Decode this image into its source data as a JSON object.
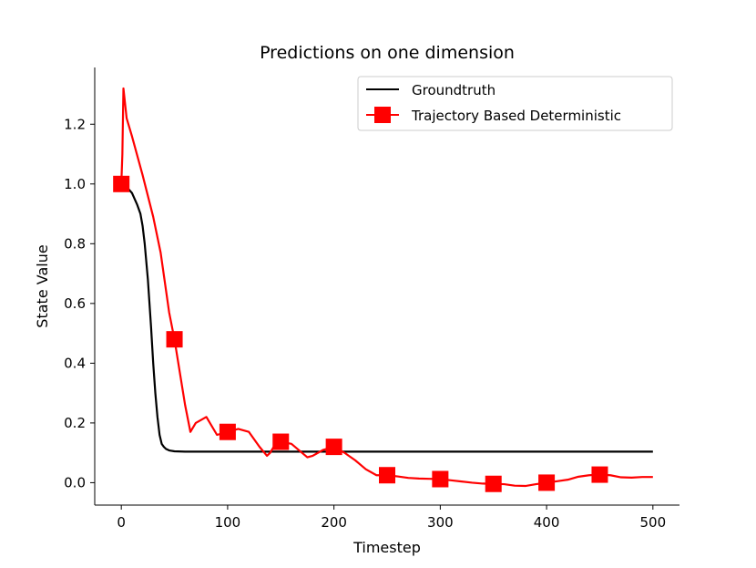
{
  "chart_data": {
    "type": "line",
    "title": "Predictions on one dimension",
    "xlabel": "Timestep",
    "ylabel": "State Value",
    "xlim": [
      -25,
      525
    ],
    "ylim": [
      -0.075,
      1.39
    ],
    "xticks": [
      0,
      100,
      200,
      300,
      400,
      500
    ],
    "xtick_labels": [
      "0",
      "100",
      "200",
      "300",
      "400",
      "500"
    ],
    "yticks": [
      0.0,
      0.2,
      0.4,
      0.6,
      0.8,
      1.0,
      1.2
    ],
    "ytick_labels": [
      "0.0",
      "0.2",
      "0.4",
      "0.6",
      "0.8",
      "1.0",
      "1.2"
    ],
    "grid": false,
    "legend_position": "top-right",
    "series": [
      {
        "name": "Groundtruth",
        "color": "#000000",
        "marker": "none",
        "x": [
          0,
          5,
          10,
          15,
          18,
          20,
          22,
          25,
          28,
          30,
          32,
          34,
          36,
          38,
          40,
          42,
          45,
          50,
          60,
          80,
          100,
          150,
          200,
          250,
          300,
          400,
          500
        ],
        "y": [
          1.0,
          0.99,
          0.97,
          0.93,
          0.9,
          0.86,
          0.8,
          0.68,
          0.52,
          0.4,
          0.3,
          0.22,
          0.16,
          0.13,
          0.12,
          0.113,
          0.108,
          0.105,
          0.104,
          0.104,
          0.104,
          0.104,
          0.104,
          0.104,
          0.104,
          0.104,
          0.104
        ]
      },
      {
        "name": "Trajectory Based Deterministic",
        "color": "#ff0000",
        "marker": "square",
        "x": [
          0,
          1,
          2,
          5,
          10,
          20,
          30,
          37,
          45,
          50,
          55,
          60,
          65,
          70,
          80,
          90,
          100,
          110,
          120,
          130,
          137,
          140,
          145,
          150,
          160,
          170,
          175,
          180,
          190,
          200,
          210,
          220,
          230,
          240,
          250,
          260,
          270,
          280,
          290,
          300,
          310,
          320,
          330,
          340,
          350,
          360,
          370,
          380,
          390,
          400,
          410,
          420,
          430,
          440,
          450,
          460,
          470,
          480,
          490,
          500
        ],
        "y": [
          1.0,
          1.1,
          1.32,
          1.22,
          1.16,
          1.03,
          0.89,
          0.77,
          0.57,
          0.48,
          0.37,
          0.26,
          0.17,
          0.2,
          0.22,
          0.16,
          0.17,
          0.18,
          0.17,
          0.12,
          0.09,
          0.1,
          0.13,
          0.137,
          0.13,
          0.1,
          0.085,
          0.09,
          0.11,
          0.12,
          0.1,
          0.075,
          0.045,
          0.025,
          0.025,
          0.021,
          0.016,
          0.014,
          0.013,
          0.012,
          0.008,
          0.004,
          0.0,
          -0.003,
          -0.004,
          -0.005,
          -0.01,
          -0.011,
          -0.005,
          0.0,
          0.005,
          0.01,
          0.02,
          0.025,
          0.027,
          0.025,
          0.018,
          0.017,
          0.019,
          0.019
        ],
        "marker_x": [
          0,
          50,
          100,
          150,
          200,
          250,
          300,
          350,
          400,
          450
        ],
        "marker_y": [
          1.0,
          0.48,
          0.17,
          0.137,
          0.12,
          0.025,
          0.012,
          -0.004,
          0.0,
          0.027
        ]
      }
    ]
  }
}
